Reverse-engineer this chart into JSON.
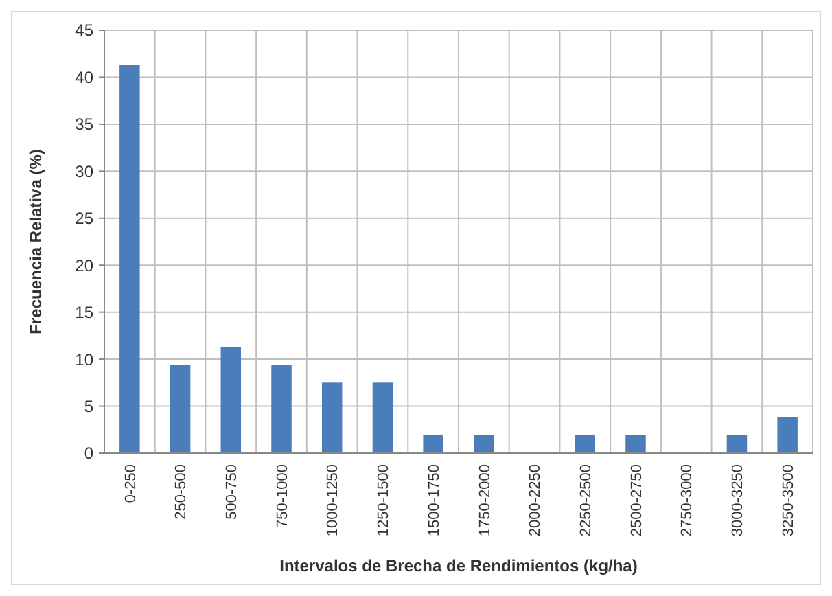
{
  "chart_data": {
    "type": "bar",
    "xlabel": "Intervalos de Brecha de Rendimientos (kg/ha)",
    "ylabel": "Frecuencia Relativa (%)",
    "categories": [
      "0-250",
      "250-500",
      "500-750",
      "750-1000",
      "1000-1250",
      "1250-1500",
      "1500-1750",
      "1750-2000",
      "2000-2250",
      "2250-2500",
      "2500-2750",
      "2750-3000",
      "3000-3250",
      "3250-3500"
    ],
    "values": [
      41.3,
      9.4,
      11.3,
      9.4,
      7.5,
      7.5,
      1.9,
      1.9,
      0,
      1.9,
      1.9,
      0,
      1.9,
      3.8
    ],
    "color": "#4a7ebb",
    "ylim": [
      0,
      45
    ],
    "yticks": [
      0,
      5,
      10,
      15,
      20,
      25,
      30,
      35,
      40,
      45
    ],
    "grid": true
  }
}
